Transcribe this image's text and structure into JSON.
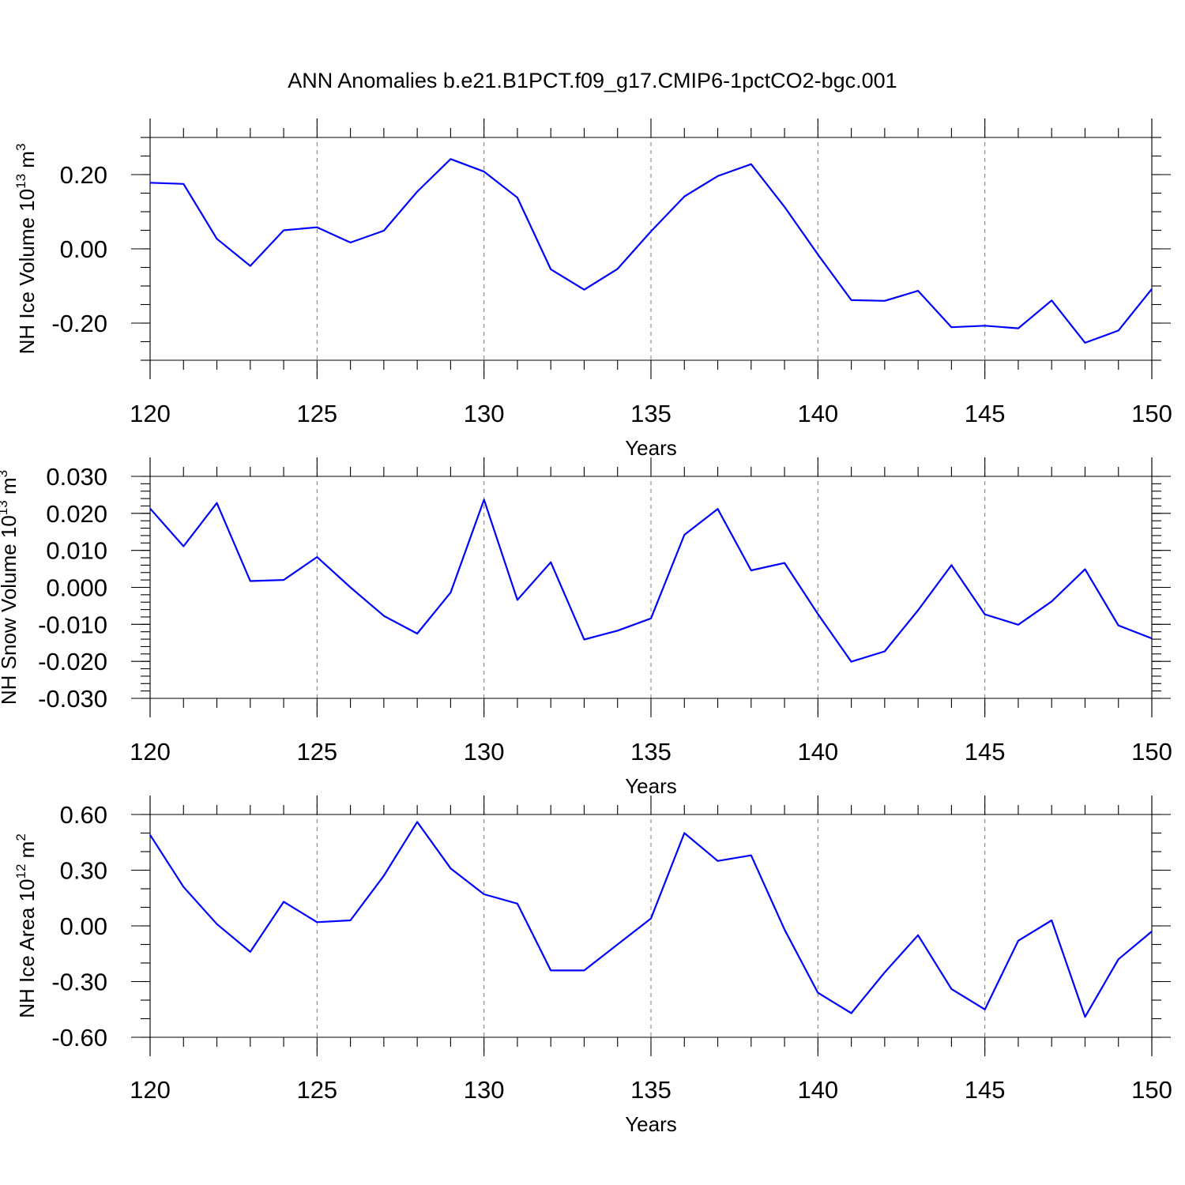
{
  "title": "ANN Anomalies b.e21.B1PCT.f09_g17.CMIP6-1pctCO2-bgc.001",
  "colors": {
    "line": "#0000ff",
    "grid": "#777777",
    "frame": "#000000"
  },
  "chart_data": [
    {
      "type": "line",
      "ylabel_main": "NH Ice Volume 10",
      "ylabel_sup": "13",
      "ylabel_unit": " m",
      "ylabel_unit_sup": "3",
      "xlabel": "Years",
      "xlim": [
        120,
        150
      ],
      "ylim": [
        -0.3,
        0.3
      ],
      "xticks": [
        120,
        125,
        130,
        135,
        140,
        145,
        150
      ],
      "xtick_labels": [
        "120",
        "125",
        "130",
        "135",
        "140",
        "145",
        "150"
      ],
      "yticks": [
        -0.2,
        0.0,
        0.2
      ],
      "ytick_labels": [
        "-0.20",
        "0.00",
        "0.20"
      ],
      "yminor_step": 0.05,
      "vgrid": [
        125,
        130,
        135,
        140,
        145
      ],
      "x": [
        120,
        121,
        122,
        123,
        124,
        125,
        126,
        127,
        128,
        129,
        130,
        131,
        132,
        133,
        134,
        135,
        136,
        137,
        138,
        139,
        140,
        141,
        142,
        143,
        144,
        145,
        146,
        147,
        148,
        149,
        150
      ],
      "values": [
        0.178,
        0.175,
        0.027,
        -0.046,
        0.05,
        0.058,
        0.017,
        0.049,
        0.154,
        0.242,
        0.208,
        0.138,
        -0.055,
        -0.11,
        -0.054,
        0.047,
        0.141,
        0.196,
        0.228,
        0.113,
        -0.015,
        -0.138,
        -0.14,
        -0.113,
        -0.211,
        -0.207,
        -0.214,
        -0.139,
        -0.253,
        -0.22,
        -0.108
      ]
    },
    {
      "type": "line",
      "ylabel_main": "NH Snow Volume 10",
      "ylabel_sup": "13",
      "ylabel_unit": " m",
      "ylabel_unit_sup": "3",
      "xlabel": "Years",
      "xlim": [
        120,
        150
      ],
      "ylim": [
        -0.03,
        0.03
      ],
      "xticks": [
        120,
        125,
        130,
        135,
        140,
        145,
        150
      ],
      "xtick_labels": [
        "120",
        "125",
        "130",
        "135",
        "140",
        "145",
        "150"
      ],
      "yticks": [
        -0.03,
        -0.02,
        -0.01,
        0.0,
        0.01,
        0.02,
        0.03
      ],
      "ytick_labels": [
        "-0.030",
        "-0.020",
        "-0.010",
        "0.000",
        "0.010",
        "0.020",
        "0.030"
      ],
      "yminor_step": 0.002,
      "vgrid": [
        125,
        130,
        135,
        140,
        145
      ],
      "x": [
        120,
        121,
        122,
        123,
        124,
        125,
        126,
        127,
        128,
        129,
        130,
        131,
        132,
        133,
        134,
        135,
        136,
        137,
        138,
        139,
        140,
        141,
        142,
        143,
        144,
        145,
        146,
        147,
        148,
        149,
        150
      ],
      "values": [
        0.0213,
        0.0111,
        0.0228,
        0.0017,
        0.002,
        0.0082,
        0.0,
        -0.0077,
        -0.0125,
        -0.0014,
        0.0237,
        -0.0034,
        0.0068,
        -0.0141,
        -0.0117,
        -0.0084,
        0.0142,
        0.0212,
        0.0046,
        0.0066,
        -0.0072,
        -0.0201,
        -0.0173,
        -0.0062,
        0.006,
        -0.0073,
        -0.0101,
        -0.0038,
        0.0049,
        -0.0103,
        -0.0138
      ]
    },
    {
      "type": "line",
      "ylabel_main": "NH Ice Area 10",
      "ylabel_sup": "12",
      "ylabel_unit": " m",
      "ylabel_unit_sup": "2",
      "xlabel": "Years",
      "xlim": [
        120,
        150
      ],
      "ylim": [
        -0.6,
        0.6
      ],
      "xticks": [
        120,
        125,
        130,
        135,
        140,
        145,
        150
      ],
      "xtick_labels": [
        "120",
        "125",
        "130",
        "135",
        "140",
        "145",
        "150"
      ],
      "yticks": [
        -0.6,
        -0.3,
        0.0,
        0.3,
        0.6
      ],
      "ytick_labels": [
        "-0.60",
        "-0.30",
        "0.00",
        "0.30",
        "0.60"
      ],
      "yminor_step": 0.1,
      "vgrid": [
        125,
        130,
        135,
        140,
        145
      ],
      "x": [
        120,
        121,
        122,
        123,
        124,
        125,
        126,
        127,
        128,
        129,
        130,
        131,
        132,
        133,
        134,
        135,
        136,
        137,
        138,
        139,
        140,
        141,
        142,
        143,
        144,
        145,
        146,
        147,
        148,
        149,
        150
      ],
      "values": [
        0.49,
        0.21,
        0.01,
        -0.14,
        0.13,
        0.02,
        0.03,
        0.27,
        0.56,
        0.31,
        0.17,
        0.12,
        -0.24,
        -0.24,
        -0.1,
        0.04,
        0.5,
        0.35,
        0.38,
        -0.02,
        -0.36,
        -0.47,
        -0.25,
        -0.05,
        -0.34,
        -0.45,
        -0.08,
        0.03,
        -0.49,
        -0.18,
        -0.03
      ]
    }
  ]
}
